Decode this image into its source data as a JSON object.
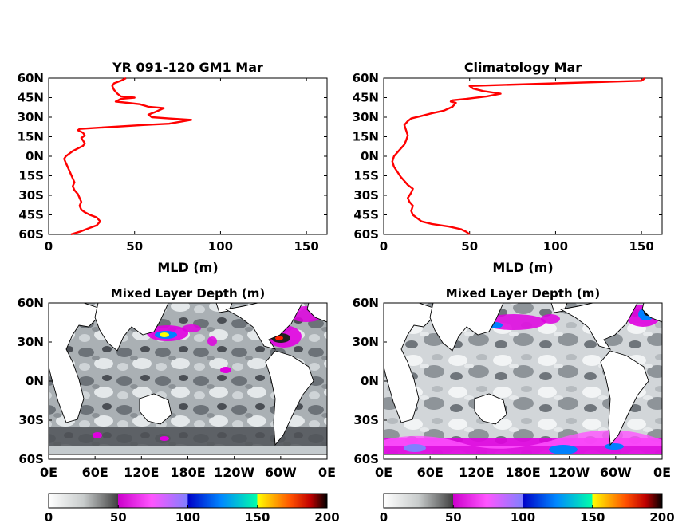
{
  "chart_data": [
    {
      "type": "line",
      "title": "YR 091-120 GM1 Mar",
      "xlabel": "MLD (m)",
      "ylabel": "",
      "xlim": [
        0,
        162
      ],
      "ylim": [
        -60,
        60
      ],
      "xticks": [
        "0",
        "50",
        "100",
        "150"
      ],
      "xtick_values": [
        0,
        50,
        100,
        150
      ],
      "yticks": [
        "60N",
        "45N",
        "30N",
        "15N",
        "0N",
        "15S",
        "30S",
        "45S",
        "60S"
      ],
      "ytick_values": [
        60,
        45,
        30,
        15,
        0,
        -15,
        -30,
        -45,
        -60
      ],
      "color": "#ff0000",
      "series": [
        {
          "points": [
            [
              13,
              -60
            ],
            [
              18,
              -58
            ],
            [
              24,
              -55
            ],
            [
              28,
              -53
            ],
            [
              30,
              -50
            ],
            [
              28,
              -47
            ],
            [
              24,
              -45
            ],
            [
              21,
              -43
            ],
            [
              19,
              -41
            ],
            [
              18,
              -38
            ],
            [
              19,
              -35
            ],
            [
              18,
              -32
            ],
            [
              17,
              -29
            ],
            [
              15,
              -26
            ],
            [
              14,
              -23
            ],
            [
              15,
              -20
            ],
            [
              14,
              -17
            ],
            [
              13,
              -14
            ],
            [
              12,
              -11
            ],
            [
              11,
              -8
            ],
            [
              10,
              -5
            ],
            [
              9,
              -2
            ],
            [
              10,
              0
            ],
            [
              12,
              2
            ],
            [
              14,
              4
            ],
            [
              17,
              6
            ],
            [
              20,
              8
            ],
            [
              21,
              10
            ],
            [
              20,
              12
            ],
            [
              19,
              14
            ],
            [
              21,
              16
            ],
            [
              20,
              18
            ],
            [
              17,
              20
            ],
            [
              18,
              21
            ],
            [
              30,
              22
            ],
            [
              55,
              24
            ],
            [
              70,
              25
            ],
            [
              83,
              28
            ],
            [
              70,
              29
            ],
            [
              60,
              30
            ],
            [
              58,
              32
            ],
            [
              62,
              34
            ],
            [
              67,
              37
            ],
            [
              58,
              38
            ],
            [
              53,
              40
            ],
            [
              46,
              41
            ],
            [
              39,
              42
            ],
            [
              42,
              44
            ],
            [
              50,
              45
            ],
            [
              42,
              46
            ],
            [
              40,
              48
            ],
            [
              38,
              51
            ],
            [
              37,
              54
            ],
            [
              38,
              56
            ],
            [
              42,
              58
            ],
            [
              45,
              60
            ]
          ]
        }
      ]
    },
    {
      "type": "line",
      "title": "Climatology Mar",
      "xlabel": "MLD (m)",
      "ylabel": "",
      "xlim": [
        0,
        162
      ],
      "ylim": [
        -60,
        60
      ],
      "xticks": [
        "0",
        "50",
        "100",
        "150"
      ],
      "xtick_values": [
        0,
        50,
        100,
        150
      ],
      "yticks": [
        "60N",
        "45N",
        "30N",
        "15N",
        "0N",
        "15S",
        "30S",
        "45S",
        "60S"
      ],
      "ytick_values": [
        60,
        45,
        30,
        15,
        0,
        -15,
        -30,
        -45,
        -60
      ],
      "color": "#ff0000",
      "series": [
        {
          "points": [
            [
              50,
              -60
            ],
            [
              48,
              -58
            ],
            [
              45,
              -56
            ],
            [
              38,
              -54
            ],
            [
              28,
              -52
            ],
            [
              22,
              -50
            ],
            [
              19,
              -47
            ],
            [
              17,
              -45
            ],
            [
              16,
              -42
            ],
            [
              17,
              -38
            ],
            [
              15,
              -35
            ],
            [
              14,
              -32
            ],
            [
              16,
              -28
            ],
            [
              17,
              -25
            ],
            [
              14,
              -22
            ],
            [
              12,
              -19
            ],
            [
              10,
              -16
            ],
            [
              8,
              -12
            ],
            [
              6,
              -8
            ],
            [
              5,
              -4
            ],
            [
              6,
              0
            ],
            [
              8,
              3
            ],
            [
              10,
              6
            ],
            [
              12,
              9
            ],
            [
              13,
              12
            ],
            [
              14,
              16
            ],
            [
              13,
              20
            ],
            [
              12,
              24
            ],
            [
              14,
              27
            ],
            [
              16,
              29
            ],
            [
              22,
              31
            ],
            [
              28,
              33
            ],
            [
              35,
              35
            ],
            [
              40,
              38
            ],
            [
              42,
              41
            ],
            [
              39,
              42
            ],
            [
              40,
              43
            ],
            [
              48,
              44
            ],
            [
              60,
              46
            ],
            [
              68,
              48
            ],
            [
              58,
              50
            ],
            [
              52,
              52
            ],
            [
              50,
              54
            ],
            [
              100,
              56
            ],
            [
              150,
              58
            ],
            [
              152,
              60
            ]
          ]
        }
      ]
    },
    {
      "type": "heatmap",
      "title": "Mixed Layer Depth (m)",
      "xticks": [
        "0E",
        "60E",
        "120E",
        "180E",
        "120W",
        "60W",
        "0E"
      ],
      "yticks": [
        "60N",
        "30N",
        "0N",
        "30S",
        "60S"
      ],
      "ytick_values": [
        60,
        30,
        0,
        -30,
        -60
      ],
      "colorbar_ticks": [
        "0",
        "50",
        "100",
        "150",
        "200"
      ],
      "clim": [
        0,
        200
      ],
      "colormap": [
        "#ffffff",
        "#404040",
        "#e600e6",
        "#0080ff",
        "#00ffa0",
        "#ffff00",
        "#ff0000",
        "#000000"
      ]
    },
    {
      "type": "heatmap",
      "title": "Mixed Layer Depth (m)",
      "xticks": [
        "0E",
        "60E",
        "120E",
        "180E",
        "120W",
        "60W",
        "0E"
      ],
      "yticks": [
        "60N",
        "30N",
        "0N",
        "30S",
        "60S"
      ],
      "ytick_values": [
        60,
        30,
        0,
        -30,
        -60
      ],
      "colorbar_ticks": [
        "0",
        "50",
        "100",
        "150",
        "200"
      ],
      "clim": [
        0,
        200
      ],
      "colormap": [
        "#ffffff",
        "#404040",
        "#e600e6",
        "#0080ff",
        "#00ffa0",
        "#ffff00",
        "#ff0000",
        "#000000"
      ]
    }
  ]
}
